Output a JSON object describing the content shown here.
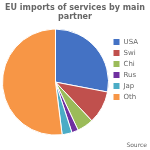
{
  "chart_data": {
    "type": "pie",
    "title": "EU imports of services by main partner",
    "categories": [
      "USA",
      "Swi",
      "Chi",
      "Rus",
      "Jap",
      "Oth"
    ],
    "values": [
      28,
      10,
      5,
      2,
      3,
      52
    ],
    "colors": [
      "#4472C4",
      "#C0504D",
      "#9BBB59",
      "#7030A0",
      "#4BACC6",
      "#F79646"
    ],
    "legend": "right",
    "annotations": [
      "Source"
    ]
  }
}
